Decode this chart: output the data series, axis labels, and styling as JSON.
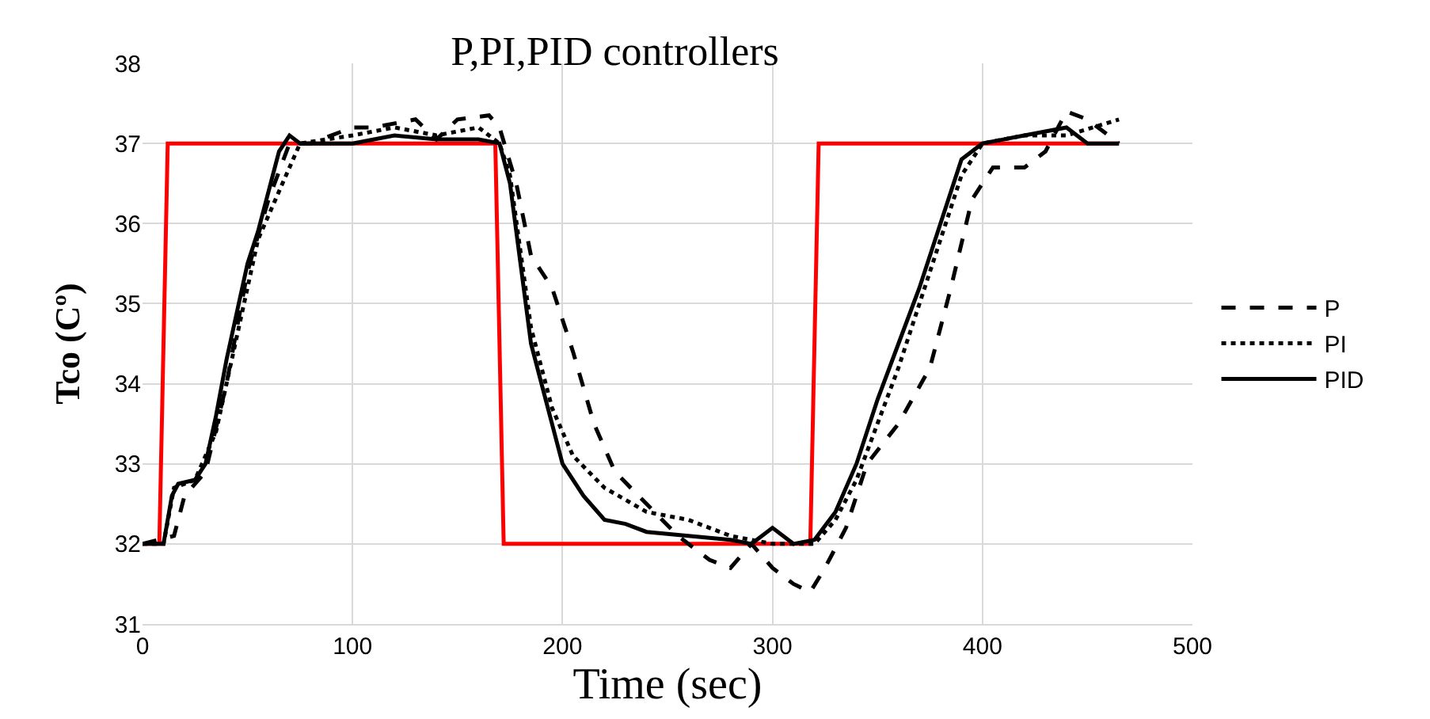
{
  "chart_data": {
    "type": "line",
    "title": "P,PI,PID controllers",
    "xlabel": "Time (sec)",
    "ylabel": "Tco (Cº)",
    "xlim": [
      0,
      500
    ],
    "xticks": [
      0,
      100,
      200,
      300,
      400,
      500
    ],
    "ylim": [
      31,
      38
    ],
    "yticks": [
      31,
      32,
      33,
      34,
      35,
      36,
      37,
      38
    ],
    "grid": true,
    "legend": "right",
    "marker": "none",
    "series": [
      {
        "color": "#ff0000",
        "line_style": "solid",
        "x": [
          0,
          8,
          12,
          168,
          172,
          318,
          322,
          465
        ],
        "values": [
          32,
          32,
          37,
          37,
          32,
          32,
          37,
          37
        ]
      },
      {
        "name": "P",
        "color": "#000000",
        "line_style": "dashed",
        "x": [
          0,
          15,
          20,
          30,
          40,
          50,
          60,
          70,
          80,
          100,
          110,
          130,
          140,
          150,
          165,
          170,
          178,
          185,
          195,
          205,
          215,
          225,
          240,
          255,
          270,
          280,
          290,
          300,
          310,
          318,
          325,
          335,
          345,
          360,
          375,
          385,
          395,
          405,
          420,
          430,
          440,
          450,
          465
        ],
        "values": [
          32,
          32.1,
          32.6,
          32.9,
          34.0,
          35.4,
          36.3,
          37.0,
          37.0,
          37.2,
          37.2,
          37.3,
          37.05,
          37.3,
          37.35,
          37.2,
          36.5,
          35.6,
          35.2,
          34.4,
          33.5,
          32.9,
          32.5,
          32.1,
          31.8,
          31.7,
          32.0,
          31.7,
          31.5,
          31.4,
          31.7,
          32.2,
          33.0,
          33.5,
          34.2,
          35.2,
          36.3,
          36.7,
          36.7,
          36.9,
          37.4,
          37.3,
          37.0
        ]
      },
      {
        "name": "PI",
        "color": "#000000",
        "line_style": "dotted",
        "x": [
          0,
          10,
          15,
          25,
          35,
          45,
          55,
          65,
          75,
          100,
          120,
          140,
          160,
          170,
          175,
          185,
          195,
          205,
          220,
          240,
          260,
          280,
          300,
          320,
          330,
          340,
          350,
          360,
          370,
          380,
          390,
          400,
          420,
          440,
          465
        ],
        "values": [
          32,
          32,
          32.7,
          32.8,
          33.4,
          34.6,
          35.8,
          36.4,
          37.0,
          37.1,
          37.2,
          37.1,
          37.2,
          37.0,
          36.6,
          34.7,
          33.7,
          33.1,
          32.7,
          32.4,
          32.3,
          32.1,
          32.0,
          32.0,
          32.3,
          32.8,
          33.5,
          34.2,
          35.0,
          35.8,
          36.6,
          37.0,
          37.1,
          37.1,
          37.3
        ]
      },
      {
        "name": "PID",
        "color": "#000000",
        "line_style": "solid",
        "x": [
          0,
          10,
          14,
          17,
          25,
          30,
          35,
          40,
          45,
          50,
          55,
          60,
          65,
          70,
          75,
          100,
          120,
          140,
          160,
          170,
          175,
          180,
          185,
          190,
          195,
          200,
          210,
          220,
          230,
          240,
          260,
          280,
          290,
          300,
          310,
          320,
          330,
          340,
          350,
          360,
          370,
          380,
          390,
          400,
          420,
          440,
          450,
          465
        ],
        "values": [
          32,
          32,
          32.6,
          32.75,
          32.8,
          33.0,
          33.6,
          34.3,
          34.9,
          35.5,
          35.9,
          36.4,
          36.9,
          37.1,
          37.0,
          37.0,
          37.1,
          37.05,
          37.05,
          37.0,
          36.5,
          35.5,
          34.5,
          34.0,
          33.5,
          33.0,
          32.6,
          32.3,
          32.25,
          32.15,
          32.1,
          32.05,
          32.0,
          32.2,
          32.0,
          32.05,
          32.4,
          33.0,
          33.8,
          34.5,
          35.2,
          36.0,
          36.8,
          37.0,
          37.1,
          37.2,
          37.0,
          37.0
        ]
      }
    ]
  }
}
